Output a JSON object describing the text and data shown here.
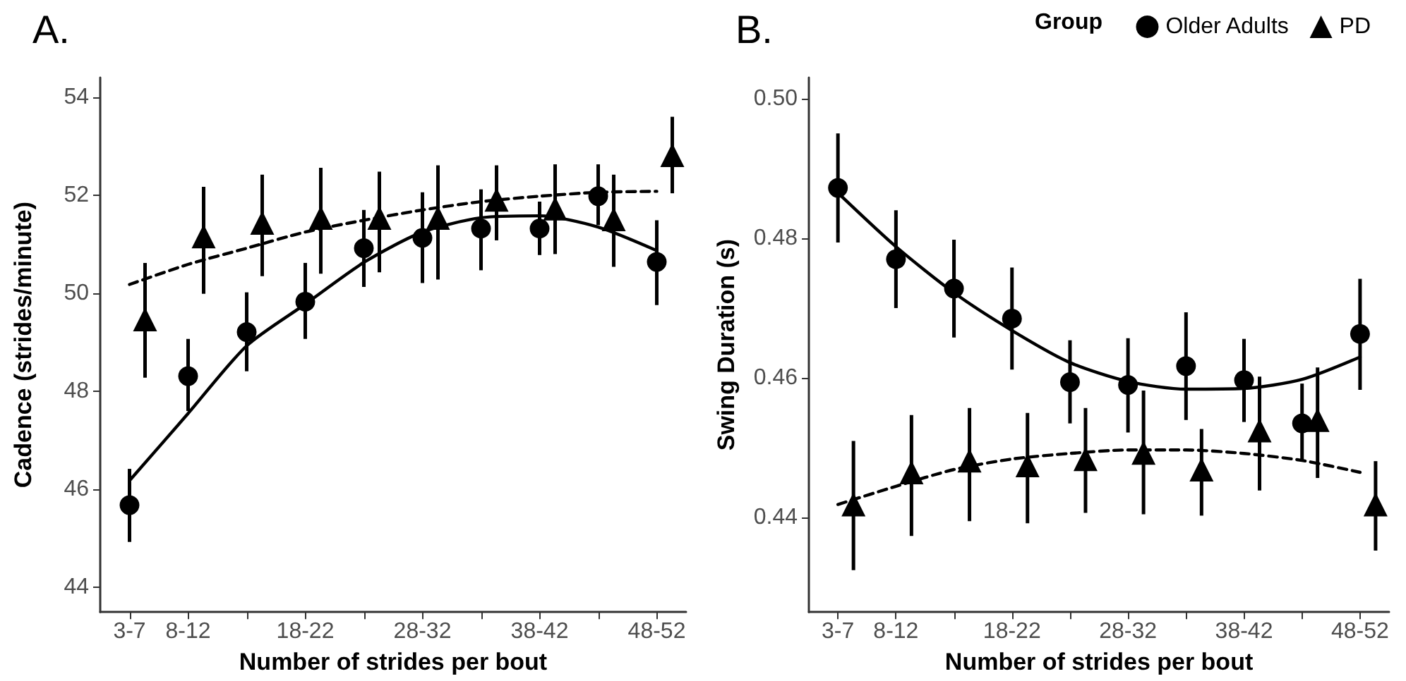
{
  "chart_data": [
    {
      "type": "scatter",
      "title": "A.",
      "xlabel": "Number of strides per bout",
      "ylabel": "Cadence (strides/minute)",
      "categories": [
        "3-7",
        "8-12",
        null,
        "18-22",
        null,
        "28-32",
        null,
        "38-42",
        null,
        "48-52"
      ],
      "ylim": [
        43.5,
        54.4
      ],
      "yticks": [
        44,
        46,
        48,
        50,
        52,
        54
      ],
      "grid": false,
      "legend": false,
      "series": [
        {
          "color": "#000000",
          "marker": "circle",
          "values": [
            45.68,
            48.31,
            49.21,
            49.83,
            50.92,
            51.13,
            51.32,
            51.32,
            51.98,
            50.64
          ],
          "errors": [
            [
              44.93,
              46.42
            ],
            [
              47.6,
              49.07
            ],
            [
              48.41,
              50.02
            ],
            [
              49.07,
              50.62
            ],
            [
              50.13,
              51.7
            ],
            [
              50.21,
              52.06
            ],
            [
              50.47,
              52.12
            ],
            [
              50.78,
              51.87
            ],
            [
              51.39,
              52.63
            ],
            [
              49.76,
              51.49
            ]
          ]
        },
        {
          "color": "#000000",
          "marker": "triangle",
          "values": [
            49.47,
            51.16,
            51.44,
            51.54,
            51.54,
            51.54,
            51.91,
            51.73,
            51.51,
            52.82
          ],
          "errors": [
            [
              48.28,
              50.62
            ],
            [
              49.99,
              52.17
            ],
            [
              50.35,
              52.42
            ],
            [
              50.4,
              52.56
            ],
            [
              50.43,
              52.48
            ],
            [
              50.28,
              52.61
            ],
            [
              51.08,
              52.61
            ],
            [
              50.8,
              52.63
            ],
            [
              50.54,
              52.42
            ],
            [
              52.04,
              53.6
            ]
          ]
        },
        {
          "type": "line",
          "color": "#000000",
          "marker": "none",
          "line_style": "solid",
          "values": [
            46.18,
            47.55,
            48.93,
            49.78,
            50.63,
            51.25,
            51.54,
            51.58,
            51.35,
            50.87
          ]
        },
        {
          "type": "line",
          "color": "#000000",
          "marker": "none",
          "line_style": "dashed",
          "values": [
            50.18,
            50.59,
            50.92,
            51.25,
            51.49,
            51.7,
            51.87,
            51.98,
            52.06,
            52.08
          ]
        }
      ]
    },
    {
      "type": "scatter",
      "title": "B.",
      "xlabel": "Number of strides per bout",
      "ylabel": "Swing Duration (s)",
      "legend_title": "Group",
      "categories": [
        "3-7",
        "8-12",
        null,
        "18-22",
        null,
        "28-32",
        null,
        "38-42",
        null,
        "48-52"
      ],
      "ylim": [
        0.4265,
        0.503
      ],
      "yticks": [
        {
          "value": 0.44,
          "label": "0.44"
        },
        {
          "value": 0.46,
          "label": "0.46"
        },
        {
          "value": 0.48,
          "label": "0.48"
        },
        {
          "value": 0.5,
          "label": "0.50"
        }
      ],
      "grid": false,
      "legend": "top right",
      "series": [
        {
          "name": "Older Adults",
          "color": "#000000",
          "marker": "circle",
          "values": [
            0.4872,
            0.477,
            0.4728,
            0.4685,
            0.4594,
            0.459,
            0.4617,
            0.4597,
            0.4535,
            0.4663
          ],
          "errors": [
            [
              0.4794,
              0.495
            ],
            [
              0.47,
              0.484
            ],
            [
              0.4658,
              0.4798
            ],
            [
              0.4612,
              0.4758
            ],
            [
              0.4535,
              0.4654
            ],
            [
              0.4522,
              0.4657
            ],
            [
              0.454,
              0.4694
            ],
            [
              0.4537,
              0.4656
            ],
            [
              0.4482,
              0.4592
            ],
            [
              0.4583,
              0.4742
            ]
          ]
        },
        {
          "name": "PD",
          "color": "#000000",
          "marker": "triangle",
          "values": [
            0.4419,
            0.4465,
            0.4482,
            0.4475,
            0.4484,
            0.4493,
            0.4469,
            0.4525,
            0.454,
            0.4419
          ],
          "errors": [
            [
              0.4325,
              0.451
            ],
            [
              0.4374,
              0.4547
            ],
            [
              0.4395,
              0.4557
            ],
            [
              0.4392,
              0.455
            ],
            [
              0.4407,
              0.4557
            ],
            [
              0.4405,
              0.4582
            ],
            [
              0.4403,
              0.4527
            ],
            [
              0.4439,
              0.4602
            ],
            [
              0.4457,
              0.4615
            ],
            [
              0.4353,
              0.4481
            ]
          ]
        },
        {
          "type": "line",
          "color": "#000000",
          "marker": "none",
          "line_style": "solid",
          "values": [
            0.4865,
            0.4788,
            0.4722,
            0.4668,
            0.4622,
            0.4595,
            0.4584,
            0.4585,
            0.4598,
            0.463
          ]
        },
        {
          "type": "line",
          "color": "#000000",
          "marker": "none",
          "line_style": "dashed",
          "values": [
            0.4419,
            0.4445,
            0.4469,
            0.4484,
            0.4492,
            0.4497,
            0.4497,
            0.4492,
            0.4482,
            0.4465
          ]
        }
      ]
    }
  ]
}
